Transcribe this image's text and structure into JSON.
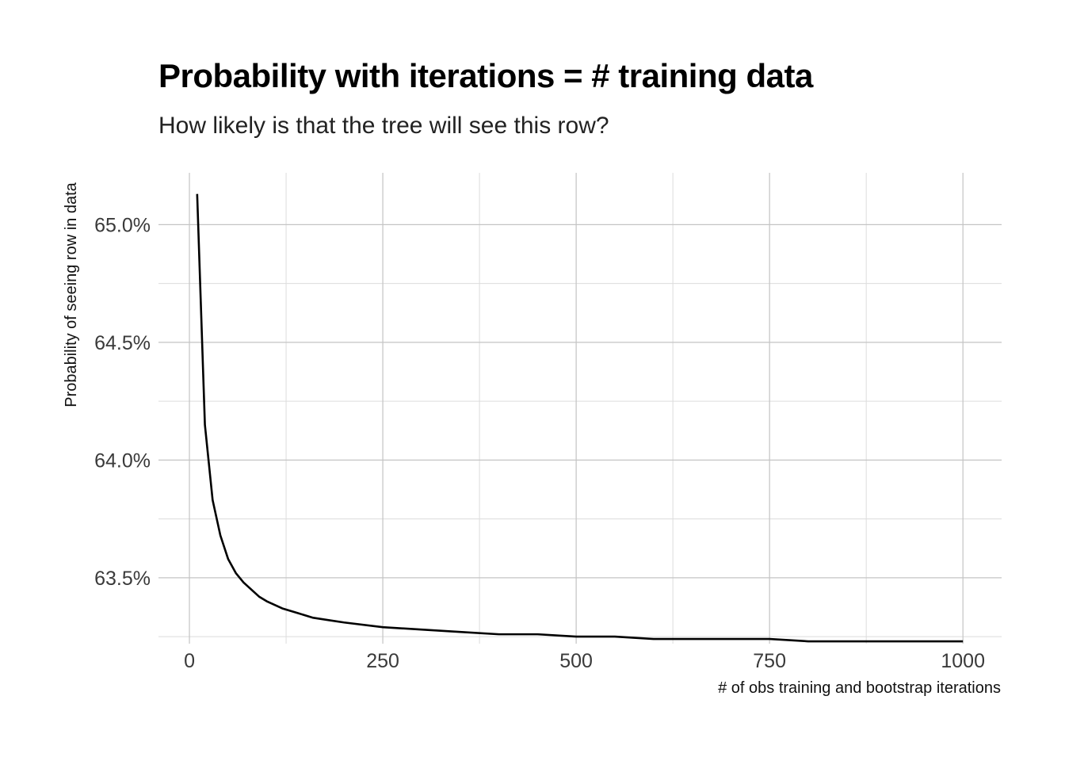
{
  "chart_data": {
    "type": "line",
    "title": "Probability with iterations = # training data",
    "subtitle": "How likely is that the tree will see this row?",
    "xlabel": "# of obs training and bootstrap iterations",
    "ylabel": "Probability of seeing row in data",
    "xlim": [
      -40,
      1050
    ],
    "ylim": [
      63.22,
      65.22
    ],
    "x_ticks": [
      0,
      250,
      500,
      750,
      1000
    ],
    "x_tick_labels": [
      "0",
      "250",
      "500",
      "750",
      "1000"
    ],
    "y_ticks": [
      63.5,
      64.0,
      64.5,
      65.0
    ],
    "y_tick_labels": [
      "63.5%",
      "64.0%",
      "64.5%",
      "65.0%"
    ],
    "grid": true,
    "line_color": "#000000",
    "series": [
      {
        "x": [
          10,
          20,
          30,
          40,
          50,
          60,
          70,
          80,
          90,
          100,
          120,
          140,
          160,
          180,
          200,
          250,
          300,
          350,
          400,
          450,
          500,
          550,
          600,
          650,
          700,
          750,
          800,
          850,
          900,
          950,
          1000
        ],
        "values": [
          65.13,
          64.15,
          63.83,
          63.68,
          63.58,
          63.52,
          63.48,
          63.45,
          63.42,
          63.4,
          63.37,
          63.35,
          63.33,
          63.32,
          63.31,
          63.29,
          63.28,
          63.27,
          63.26,
          63.26,
          63.25,
          63.25,
          63.24,
          63.24,
          63.24,
          63.24,
          63.23,
          63.23,
          63.23,
          63.23,
          63.23
        ]
      }
    ]
  }
}
